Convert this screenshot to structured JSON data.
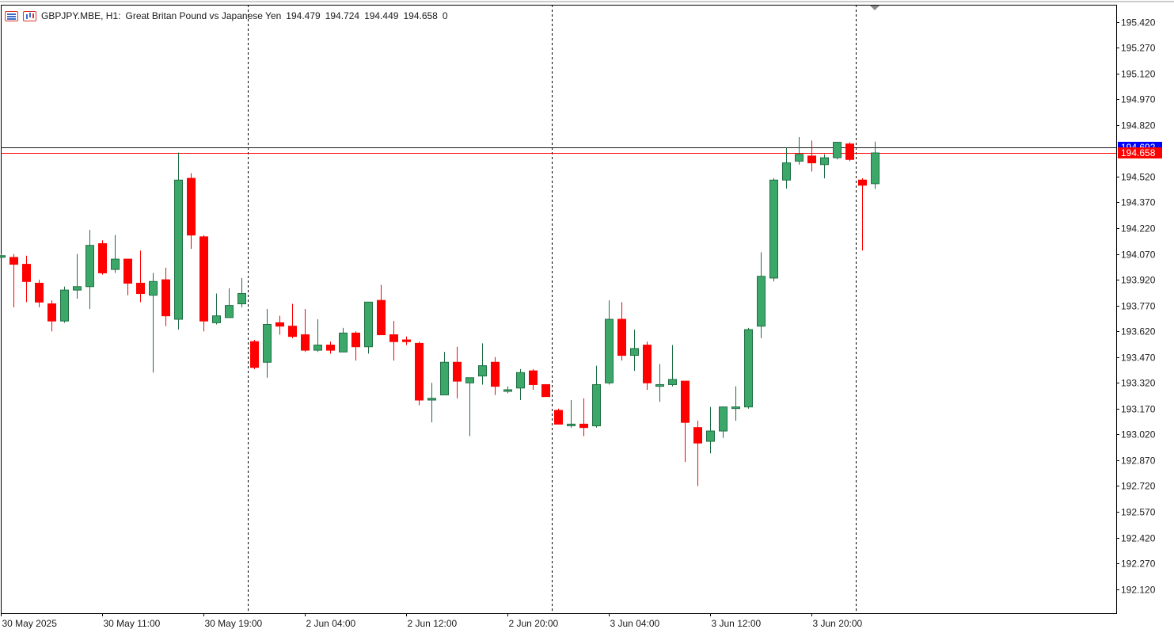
{
  "header": {
    "symbol": "GBPJPY.MBE, H1:",
    "description": "Great Britan Pound vs Japanese Yen",
    "open": "194.479",
    "high": "194.724",
    "low": "194.449",
    "close": "194.658",
    "volume": "0",
    "icons": [
      "list-icon",
      "bars-chart-icon"
    ]
  },
  "colors": {
    "bull": "#3ba86a",
    "bear": "#ff0000",
    "grid": "#000000",
    "ask_line": "#1a1a1a",
    "bid_line": "#ff0000",
    "ask_badge": "#0000ff",
    "bid_badge": "#ff0000"
  },
  "price_labels": {
    "ask": "194.692",
    "bid": "194.658"
  },
  "chart_data": {
    "type": "candlestick",
    "timeframe": "H1",
    "ylim": [
      191.98,
      195.52
    ],
    "y_ticks": [
      "195.420",
      "195.270",
      "195.120",
      "194.970",
      "194.820",
      "194.520",
      "194.370",
      "194.220",
      "194.070",
      "193.920",
      "193.770",
      "193.620",
      "193.470",
      "193.320",
      "193.170",
      "193.020",
      "192.870",
      "192.720",
      "192.570",
      "192.420",
      "192.270",
      "192.120"
    ],
    "x_tick_labels": [
      {
        "i": 0,
        "label": "30 May 2025"
      },
      {
        "i": 8,
        "label": "30 May 11:00"
      },
      {
        "i": 16,
        "label": "30 May 19:00"
      },
      {
        "i": 24,
        "label": "2 Jun 04:00"
      },
      {
        "i": 32,
        "label": "2 Jun 12:00"
      },
      {
        "i": 40,
        "label": "2 Jun 20:00"
      },
      {
        "i": 48,
        "label": "3 Jun 04:00"
      },
      {
        "i": 56,
        "label": "3 Jun 12:00"
      },
      {
        "i": 64,
        "label": "3 Jun 20:00"
      }
    ],
    "day_separators_after_index": [
      19.5,
      43.5,
      67.5
    ],
    "candles": [
      {
        "o": 194.06,
        "h": 194.07,
        "l": 194.05,
        "c": 194.06
      },
      {
        "o": 194.05,
        "h": 194.07,
        "l": 193.76,
        "c": 194.01
      },
      {
        "o": 194.01,
        "h": 194.06,
        "l": 193.79,
        "c": 193.91
      },
      {
        "o": 193.9,
        "h": 193.92,
        "l": 193.76,
        "c": 193.79
      },
      {
        "o": 193.78,
        "h": 193.8,
        "l": 193.62,
        "c": 193.68
      },
      {
        "o": 193.68,
        "h": 193.88,
        "l": 193.67,
        "c": 193.86
      },
      {
        "o": 193.86,
        "h": 194.07,
        "l": 193.81,
        "c": 193.88
      },
      {
        "o": 193.88,
        "h": 194.21,
        "l": 193.75,
        "c": 194.12
      },
      {
        "o": 194.13,
        "h": 194.15,
        "l": 193.95,
        "c": 193.96
      },
      {
        "o": 193.98,
        "h": 194.18,
        "l": 193.96,
        "c": 194.04
      },
      {
        "o": 194.04,
        "h": 194.04,
        "l": 193.83,
        "c": 193.9
      },
      {
        "o": 193.9,
        "h": 194.09,
        "l": 193.79,
        "c": 193.84
      },
      {
        "o": 193.83,
        "h": 193.96,
        "l": 193.38,
        "c": 193.91
      },
      {
        "o": 193.92,
        "h": 193.99,
        "l": 193.65,
        "c": 193.71
      },
      {
        "o": 193.69,
        "h": 194.66,
        "l": 193.63,
        "c": 194.5
      },
      {
        "o": 194.51,
        "h": 194.54,
        "l": 194.1,
        "c": 194.18
      },
      {
        "o": 194.17,
        "h": 194.18,
        "l": 193.62,
        "c": 193.68
      },
      {
        "o": 193.67,
        "h": 193.84,
        "l": 193.66,
        "c": 193.71
      },
      {
        "o": 193.7,
        "h": 193.87,
        "l": 193.7,
        "c": 193.77
      },
      {
        "o": 193.78,
        "h": 193.93,
        "l": 193.76,
        "c": 193.84
      },
      {
        "o": 193.56,
        "h": 193.57,
        "l": 193.4,
        "c": 193.41
      },
      {
        "o": 193.44,
        "h": 193.75,
        "l": 193.35,
        "c": 193.66
      },
      {
        "o": 193.67,
        "h": 193.71,
        "l": 193.6,
        "c": 193.65
      },
      {
        "o": 193.65,
        "h": 193.78,
        "l": 193.58,
        "c": 193.59
      },
      {
        "o": 193.6,
        "h": 193.75,
        "l": 193.5,
        "c": 193.51
      },
      {
        "o": 193.51,
        "h": 193.69,
        "l": 193.5,
        "c": 193.54
      },
      {
        "o": 193.54,
        "h": 193.56,
        "l": 193.49,
        "c": 193.51
      },
      {
        "o": 193.5,
        "h": 193.64,
        "l": 193.5,
        "c": 193.61
      },
      {
        "o": 193.61,
        "h": 193.62,
        "l": 193.45,
        "c": 193.53
      },
      {
        "o": 193.53,
        "h": 193.79,
        "l": 193.49,
        "c": 193.79
      },
      {
        "o": 193.8,
        "h": 193.89,
        "l": 193.6,
        "c": 193.6
      },
      {
        "o": 193.6,
        "h": 193.68,
        "l": 193.45,
        "c": 193.56
      },
      {
        "o": 193.57,
        "h": 193.59,
        "l": 193.54,
        "c": 193.56
      },
      {
        "o": 193.55,
        "h": 193.56,
        "l": 193.19,
        "c": 193.22
      },
      {
        "o": 193.22,
        "h": 193.32,
        "l": 193.09,
        "c": 193.23
      },
      {
        "o": 193.25,
        "h": 193.5,
        "l": 193.25,
        "c": 193.44
      },
      {
        "o": 193.44,
        "h": 193.53,
        "l": 193.23,
        "c": 193.33
      },
      {
        "o": 193.32,
        "h": 193.35,
        "l": 193.01,
        "c": 193.35
      },
      {
        "o": 193.36,
        "h": 193.55,
        "l": 193.31,
        "c": 193.42
      },
      {
        "o": 193.44,
        "h": 193.47,
        "l": 193.25,
        "c": 193.3
      },
      {
        "o": 193.28,
        "h": 193.3,
        "l": 193.26,
        "c": 193.28
      },
      {
        "o": 193.29,
        "h": 193.4,
        "l": 193.22,
        "c": 193.38
      },
      {
        "o": 193.39,
        "h": 193.4,
        "l": 193.28,
        "c": 193.31
      },
      {
        "o": 193.31,
        "h": 193.31,
        "l": 193.24,
        "c": 193.24
      },
      {
        "o": 193.16,
        "h": 193.17,
        "l": 193.08,
        "c": 193.08
      },
      {
        "o": 193.08,
        "h": 193.22,
        "l": 193.06,
        "c": 193.08
      },
      {
        "o": 193.08,
        "h": 193.23,
        "l": 193.01,
        "c": 193.06
      },
      {
        "o": 193.07,
        "h": 193.42,
        "l": 193.06,
        "c": 193.31
      },
      {
        "o": 193.32,
        "h": 193.8,
        "l": 193.31,
        "c": 193.69
      },
      {
        "o": 193.69,
        "h": 193.79,
        "l": 193.45,
        "c": 193.48
      },
      {
        "o": 193.48,
        "h": 193.63,
        "l": 193.39,
        "c": 193.52
      },
      {
        "o": 193.54,
        "h": 193.56,
        "l": 193.28,
        "c": 193.32
      },
      {
        "o": 193.3,
        "h": 193.43,
        "l": 193.21,
        "c": 193.31
      },
      {
        "o": 193.31,
        "h": 193.54,
        "l": 193.3,
        "c": 193.34
      },
      {
        "o": 193.33,
        "h": 193.33,
        "l": 192.86,
        "c": 193.09
      },
      {
        "o": 193.06,
        "h": 193.1,
        "l": 192.72,
        "c": 192.97
      },
      {
        "o": 192.98,
        "h": 193.18,
        "l": 192.91,
        "c": 193.04
      },
      {
        "o": 193.04,
        "h": 193.18,
        "l": 193.0,
        "c": 193.18
      },
      {
        "o": 193.18,
        "h": 193.3,
        "l": 193.1,
        "c": 193.18
      },
      {
        "o": 193.18,
        "h": 193.64,
        "l": 193.17,
        "c": 193.63
      },
      {
        "o": 193.65,
        "h": 194.08,
        "l": 193.58,
        "c": 193.94
      },
      {
        "o": 193.93,
        "h": 194.51,
        "l": 193.91,
        "c": 194.5
      },
      {
        "o": 194.5,
        "h": 194.69,
        "l": 194.45,
        "c": 194.6
      },
      {
        "o": 194.61,
        "h": 194.75,
        "l": 194.59,
        "c": 194.65
      },
      {
        "o": 194.64,
        "h": 194.73,
        "l": 194.55,
        "c": 194.6
      },
      {
        "o": 194.59,
        "h": 194.65,
        "l": 194.51,
        "c": 194.63
      },
      {
        "o": 194.63,
        "h": 194.71,
        "l": 194.62,
        "c": 194.72
      },
      {
        "o": 194.71,
        "h": 194.72,
        "l": 194.61,
        "c": 194.62
      },
      {
        "o": 194.5,
        "h": 194.51,
        "l": 194.09,
        "c": 194.47
      },
      {
        "o": 194.479,
        "h": 194.724,
        "l": 194.449,
        "c": 194.658
      }
    ]
  }
}
